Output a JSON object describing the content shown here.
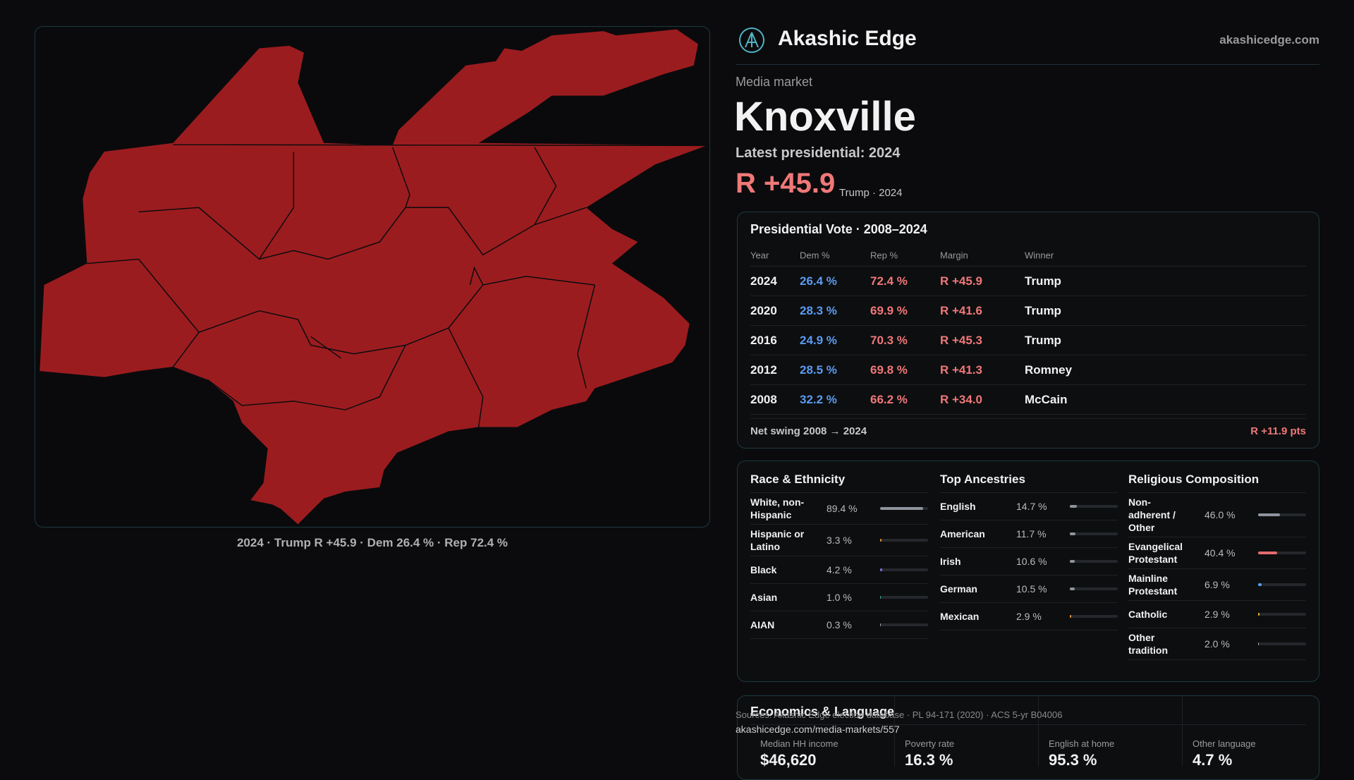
{
  "header": {
    "brand": "Akashic Edge",
    "site": "akashicedge.com"
  },
  "market": {
    "kicker": "Media market",
    "name": "Knoxville",
    "latest": "Latest presidential: 2024",
    "margin": "R +45.9",
    "winner_note": "Trump · 2024"
  },
  "map": {
    "caption": "2024 · Trump R +45.9 · Dem 26.4 % · Rep 72.4 %"
  },
  "vote_table": {
    "title": "Presidential Vote · 2008–2024",
    "columns": [
      "Year",
      "Dem %",
      "Rep %",
      "Margin",
      "Winner"
    ],
    "rows": [
      [
        "2024",
        "26.4 %",
        "72.4 %",
        "R +45.9",
        "Trump"
      ],
      [
        "2020",
        "28.3 %",
        "69.9 %",
        "R +41.6",
        "Trump"
      ],
      [
        "2016",
        "24.9 %",
        "70.3 %",
        "R +45.3",
        "Trump"
      ],
      [
        "2012",
        "28.5 %",
        "69.8 %",
        "R +41.3",
        "Romney"
      ],
      [
        "2008",
        "32.2 %",
        "66.2 %",
        "R +34.0",
        "McCain"
      ]
    ],
    "footer": {
      "label": "Net swing 2008 → 2024",
      "value": "R +11.9 pts"
    }
  },
  "race": {
    "title": "Race & Ethnicity",
    "items": [
      {
        "name": "White, non-Hispanic",
        "value": 89.4,
        "value_label": "89.4 %",
        "color": "#8e949e"
      },
      {
        "name": "Hispanic or Latino",
        "value": 3.3,
        "value_label": "3.3 %",
        "color": "#e0912f"
      },
      {
        "name": "Black",
        "value": 4.2,
        "value_label": "4.2 %",
        "color": "#7b72d9"
      },
      {
        "name": "Asian",
        "value": 1.0,
        "value_label": "1.0 %",
        "color": "#3fa9a0"
      },
      {
        "name": "AIAN",
        "value": 0.3,
        "value_label": "0.3 %",
        "color": "#a0a0a0"
      }
    ]
  },
  "ancestries": {
    "title": "Top Ancestries",
    "items": [
      {
        "name": "English",
        "value": 14.7,
        "value_label": "14.7 %",
        "color": "#8e949e"
      },
      {
        "name": "American",
        "value": 11.7,
        "value_label": "11.7 %",
        "color": "#8e949e"
      },
      {
        "name": "Irish",
        "value": 10.6,
        "value_label": "10.6 %",
        "color": "#8e949e"
      },
      {
        "name": "German",
        "value": 10.5,
        "value_label": "10.5 %",
        "color": "#8e949e"
      },
      {
        "name": "Mexican",
        "value": 2.9,
        "value_label": "2.9 %",
        "color": "#e0912f"
      }
    ]
  },
  "religion": {
    "title": "Religious Composition",
    "items": [
      {
        "name": "Non-adherent / Other",
        "value": 46.0,
        "value_label": "46.0 %",
        "color": "#8e949e"
      },
      {
        "name": "Evangelical Protestant",
        "value": 40.4,
        "value_label": "40.4 %",
        "color": "#e36b6b"
      },
      {
        "name": "Mainline Protestant",
        "value": 6.9,
        "value_label": "6.9 %",
        "color": "#5b9bf0"
      },
      {
        "name": "Catholic",
        "value": 2.9,
        "value_label": "2.9 %",
        "color": "#e0b02f"
      },
      {
        "name": "Other tradition",
        "value": 2.0,
        "value_label": "2.0 %",
        "color": "#a0a0a0"
      }
    ]
  },
  "economics": {
    "title": "Economics & Language",
    "metrics": [
      {
        "label": "Median HH income",
        "value": "$46,620"
      },
      {
        "label": "Poverty rate",
        "value": "16.3 %"
      },
      {
        "label": "English at home",
        "value": "95.3 %"
      },
      {
        "label": "Other language",
        "value": "4.7 %"
      }
    ]
  },
  "sources": {
    "text": "Sources: Akashic Edge election database · PL 94-171 (2020) · ACS 5-yr B04006",
    "url": "akashicedge.com/media-markets/557"
  }
}
